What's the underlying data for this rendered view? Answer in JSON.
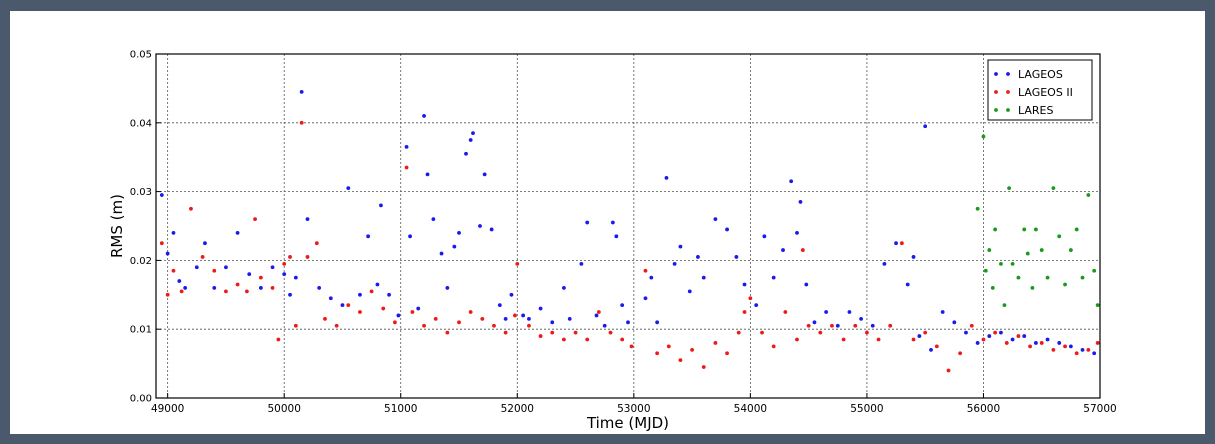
{
  "chart_data": {
    "type": "scatter",
    "xlabel": "Time (MJD)",
    "ylabel": "RMS (m)",
    "xlim": [
      48900,
      57000
    ],
    "ylim": [
      0,
      0.05
    ],
    "grid": true,
    "legend": "top-right",
    "x_ticks": [
      "49000",
      "50000",
      "51000",
      "52000",
      "53000",
      "54000",
      "55000",
      "56000",
      "57000"
    ],
    "y_ticks": [
      "0.00",
      "0.01",
      "0.02",
      "0.03",
      "0.04",
      "0.05"
    ],
    "series": [
      {
        "name": "LAGEOS",
        "color": "#1a1aee",
        "points": [
          [
            48950,
            0.0295
          ],
          [
            49000,
            0.021
          ],
          [
            49050,
            0.024
          ],
          [
            49100,
            0.017
          ],
          [
            49150,
            0.016
          ],
          [
            49250,
            0.019
          ],
          [
            49320,
            0.0225
          ],
          [
            49400,
            0.016
          ],
          [
            49500,
            0.019
          ],
          [
            49600,
            0.024
          ],
          [
            49700,
            0.018
          ],
          [
            49800,
            0.016
          ],
          [
            49900,
            0.019
          ],
          [
            50000,
            0.018
          ],
          [
            50050,
            0.015
          ],
          [
            50100,
            0.0175
          ],
          [
            50150,
            0.0445
          ],
          [
            50200,
            0.026
          ],
          [
            50300,
            0.016
          ],
          [
            50400,
            0.0145
          ],
          [
            50500,
            0.0135
          ],
          [
            50550,
            0.0305
          ],
          [
            50650,
            0.015
          ],
          [
            50720,
            0.0235
          ],
          [
            50800,
            0.0165
          ],
          [
            50830,
            0.028
          ],
          [
            50900,
            0.015
          ],
          [
            50980,
            0.012
          ],
          [
            51050,
            0.0365
          ],
          [
            51080,
            0.0235
          ],
          [
            51150,
            0.013
          ],
          [
            51200,
            0.041
          ],
          [
            51230,
            0.0325
          ],
          [
            51280,
            0.026
          ],
          [
            51350,
            0.021
          ],
          [
            51400,
            0.016
          ],
          [
            51460,
            0.022
          ],
          [
            51500,
            0.024
          ],
          [
            51560,
            0.0355
          ],
          [
            51600,
            0.0375
          ],
          [
            51620,
            0.0385
          ],
          [
            51680,
            0.025
          ],
          [
            51720,
            0.0325
          ],
          [
            51780,
            0.0245
          ],
          [
            51850,
            0.0135
          ],
          [
            51900,
            0.0115
          ],
          [
            51950,
            0.015
          ],
          [
            52050,
            0.012
          ],
          [
            52100,
            0.0115
          ],
          [
            52200,
            0.013
          ],
          [
            52300,
            0.011
          ],
          [
            52400,
            0.016
          ],
          [
            52450,
            0.0115
          ],
          [
            52550,
            0.0195
          ],
          [
            52600,
            0.0255
          ],
          [
            52680,
            0.012
          ],
          [
            52750,
            0.0105
          ],
          [
            52820,
            0.0255
          ],
          [
            52850,
            0.0235
          ],
          [
            52900,
            0.0135
          ],
          [
            52950,
            0.011
          ],
          [
            53100,
            0.0145
          ],
          [
            53150,
            0.0175
          ],
          [
            53200,
            0.011
          ],
          [
            53280,
            0.032
          ],
          [
            53350,
            0.0195
          ],
          [
            53400,
            0.022
          ],
          [
            53480,
            0.0155
          ],
          [
            53550,
            0.0205
          ],
          [
            53600,
            0.0175
          ],
          [
            53700,
            0.026
          ],
          [
            53800,
            0.0245
          ],
          [
            53880,
            0.0205
          ],
          [
            53950,
            0.0165
          ],
          [
            54050,
            0.0135
          ],
          [
            54120,
            0.0235
          ],
          [
            54200,
            0.0175
          ],
          [
            54280,
            0.0215
          ],
          [
            54350,
            0.0315
          ],
          [
            54400,
            0.024
          ],
          [
            54430,
            0.0285
          ],
          [
            54480,
            0.0165
          ],
          [
            54550,
            0.011
          ],
          [
            54650,
            0.0125
          ],
          [
            54750,
            0.0105
          ],
          [
            54850,
            0.0125
          ],
          [
            54950,
            0.0115
          ],
          [
            55050,
            0.0105
          ],
          [
            55150,
            0.0195
          ],
          [
            55250,
            0.0225
          ],
          [
            55350,
            0.0165
          ],
          [
            55400,
            0.0205
          ],
          [
            55450,
            0.009
          ],
          [
            55500,
            0.0395
          ],
          [
            55550,
            0.007
          ],
          [
            55650,
            0.0125
          ],
          [
            55750,
            0.011
          ],
          [
            55850,
            0.0095
          ],
          [
            55950,
            0.008
          ],
          [
            56050,
            0.009
          ],
          [
            56150,
            0.0095
          ],
          [
            56250,
            0.0085
          ],
          [
            56350,
            0.009
          ],
          [
            56450,
            0.008
          ],
          [
            56550,
            0.0085
          ],
          [
            56650,
            0.008
          ],
          [
            56750,
            0.0075
          ],
          [
            56850,
            0.007
          ],
          [
            56950,
            0.0065
          ]
        ]
      },
      {
        "name": "LAGEOS II",
        "color": "#ee1a1a",
        "points": [
          [
            48950,
            0.0225
          ],
          [
            49000,
            0.015
          ],
          [
            49050,
            0.0185
          ],
          [
            49120,
            0.0155
          ],
          [
            49200,
            0.0275
          ],
          [
            49300,
            0.0205
          ],
          [
            49400,
            0.0185
          ],
          [
            49500,
            0.0155
          ],
          [
            49600,
            0.0165
          ],
          [
            49680,
            0.0155
          ],
          [
            49750,
            0.026
          ],
          [
            49800,
            0.0175
          ],
          [
            49900,
            0.016
          ],
          [
            49950,
            0.0085
          ],
          [
            50000,
            0.0195
          ],
          [
            50050,
            0.0205
          ],
          [
            50100,
            0.0105
          ],
          [
            50150,
            0.04
          ],
          [
            50200,
            0.0205
          ],
          [
            50280,
            0.0225
          ],
          [
            50350,
            0.0115
          ],
          [
            50450,
            0.0105
          ],
          [
            50550,
            0.0135
          ],
          [
            50650,
            0.0125
          ],
          [
            50750,
            0.0155
          ],
          [
            50850,
            0.013
          ],
          [
            50950,
            0.011
          ],
          [
            51050,
            0.0335
          ],
          [
            51100,
            0.0125
          ],
          [
            51200,
            0.0105
          ],
          [
            51300,
            0.0115
          ],
          [
            51400,
            0.0095
          ],
          [
            51500,
            0.011
          ],
          [
            51600,
            0.0125
          ],
          [
            51700,
            0.0115
          ],
          [
            51800,
            0.0105
          ],
          [
            51900,
            0.0095
          ],
          [
            51980,
            0.012
          ],
          [
            52000,
            0.0195
          ],
          [
            52100,
            0.0105
          ],
          [
            52200,
            0.009
          ],
          [
            52300,
            0.0095
          ],
          [
            52400,
            0.0085
          ],
          [
            52500,
            0.0095
          ],
          [
            52600,
            0.0085
          ],
          [
            52700,
            0.0125
          ],
          [
            52800,
            0.0095
          ],
          [
            52900,
            0.0085
          ],
          [
            52980,
            0.0075
          ],
          [
            53100,
            0.0185
          ],
          [
            53200,
            0.0065
          ],
          [
            53300,
            0.0075
          ],
          [
            53400,
            0.0055
          ],
          [
            53500,
            0.007
          ],
          [
            53600,
            0.0045
          ],
          [
            53700,
            0.008
          ],
          [
            53800,
            0.0065
          ],
          [
            53900,
            0.0095
          ],
          [
            53950,
            0.0125
          ],
          [
            54000,
            0.0145
          ],
          [
            54100,
            0.0095
          ],
          [
            54200,
            0.0075
          ],
          [
            54300,
            0.0125
          ],
          [
            54400,
            0.0085
          ],
          [
            54450,
            0.0215
          ],
          [
            54500,
            0.0105
          ],
          [
            54600,
            0.0095
          ],
          [
            54700,
            0.0105
          ],
          [
            54800,
            0.0085
          ],
          [
            54900,
            0.0105
          ],
          [
            55000,
            0.0095
          ],
          [
            55100,
            0.0085
          ],
          [
            55200,
            0.0105
          ],
          [
            55300,
            0.0225
          ],
          [
            55400,
            0.0085
          ],
          [
            55500,
            0.0095
          ],
          [
            55600,
            0.0075
          ],
          [
            55700,
            0.004
          ],
          [
            55800,
            0.0065
          ],
          [
            55900,
            0.0105
          ],
          [
            56000,
            0.0085
          ],
          [
            56100,
            0.0095
          ],
          [
            56200,
            0.008
          ],
          [
            56300,
            0.009
          ],
          [
            56400,
            0.0075
          ],
          [
            56500,
            0.008
          ],
          [
            56600,
            0.007
          ],
          [
            56700,
            0.0075
          ],
          [
            56800,
            0.0065
          ],
          [
            56900,
            0.007
          ],
          [
            56980,
            0.008
          ]
        ]
      },
      {
        "name": "LARES",
        "color": "#1a9a1a",
        "points": [
          [
            55950,
            0.0275
          ],
          [
            56000,
            0.038
          ],
          [
            56020,
            0.0185
          ],
          [
            56050,
            0.0215
          ],
          [
            56080,
            0.016
          ],
          [
            56100,
            0.0245
          ],
          [
            56150,
            0.0195
          ],
          [
            56180,
            0.0135
          ],
          [
            56220,
            0.0305
          ],
          [
            56250,
            0.0195
          ],
          [
            56300,
            0.0175
          ],
          [
            56350,
            0.0245
          ],
          [
            56380,
            0.021
          ],
          [
            56420,
            0.016
          ],
          [
            56450,
            0.0245
          ],
          [
            56500,
            0.0215
          ],
          [
            56550,
            0.0175
          ],
          [
            56600,
            0.0305
          ],
          [
            56650,
            0.0235
          ],
          [
            56700,
            0.0165
          ],
          [
            56750,
            0.0215
          ],
          [
            56800,
            0.0245
          ],
          [
            56850,
            0.0175
          ],
          [
            56900,
            0.0295
          ],
          [
            56950,
            0.0185
          ],
          [
            56980,
            0.0135
          ]
        ]
      }
    ]
  }
}
